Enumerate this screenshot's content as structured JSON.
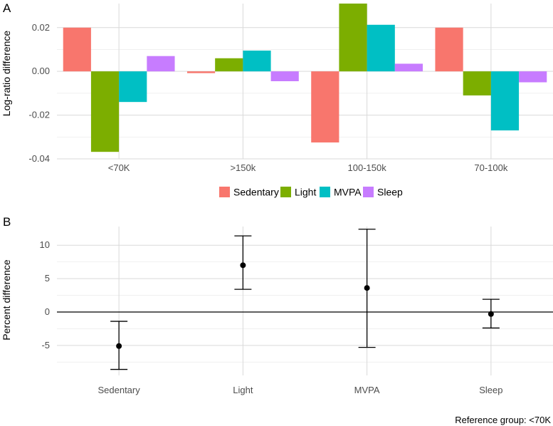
{
  "chart_data": [
    {
      "panel_label": "A",
      "type": "bar",
      "categories": [
        "<70K",
        ">150k",
        "100-150k",
        "70-100k"
      ],
      "series": [
        {
          "name": "Sedentary",
          "color": "#F8766D",
          "values": [
            0.02,
            -0.0008,
            -0.0325,
            0.02
          ]
        },
        {
          "name": "Light",
          "color": "#7CAE00",
          "values": [
            -0.0368,
            0.006,
            0.031,
            -0.011
          ]
        },
        {
          "name": "MVPA",
          "color": "#00BFC4",
          "values": [
            -0.014,
            0.0095,
            0.0213,
            -0.027
          ]
        },
        {
          "name": "Sleep",
          "color": "#C77CFF",
          "values": [
            0.007,
            -0.0045,
            0.0035,
            -0.005
          ]
        }
      ],
      "ylabel": "Log-ratio difference",
      "xlabel": "",
      "ylim": [
        -0.04,
        0.031
      ],
      "y_ticks": [
        0.02,
        0.0,
        -0.02,
        -0.04
      ],
      "y_tick_labels": [
        "0.02",
        "0.00",
        "-0.02",
        "-0.04"
      ],
      "legend_position": "bottom",
      "grid": true
    },
    {
      "panel_label": "B",
      "type": "scatter",
      "categories": [
        "Sedentary",
        "Light",
        "MVPA",
        "Sleep"
      ],
      "points": [
        {
          "category": "Sedentary",
          "estimate": -5.1,
          "lower": -8.6,
          "upper": -1.4
        },
        {
          "category": "Light",
          "estimate": 7.0,
          "lower": 3.4,
          "upper": 11.4
        },
        {
          "category": "MVPA",
          "estimate": 3.6,
          "lower": -5.3,
          "upper": 12.4
        },
        {
          "category": "Sleep",
          "estimate": -0.3,
          "lower": -2.4,
          "upper": 1.9
        }
      ],
      "ylabel": "Percent difference",
      "xlabel": "",
      "ylim": [
        -9.5,
        12.8
      ],
      "y_ticks": [
        10,
        5,
        0,
        -5
      ],
      "y_tick_labels": [
        "10",
        "5",
        "0",
        "-5"
      ],
      "reference_line": 0,
      "caption": "Reference group: <70K",
      "grid": true
    }
  ]
}
